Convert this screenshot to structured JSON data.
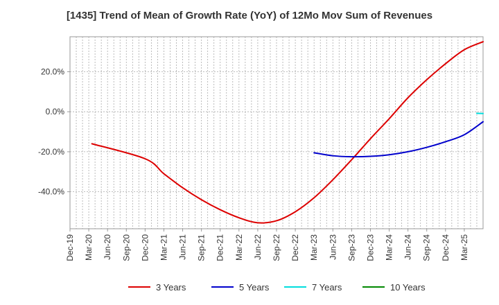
{
  "chart_data": {
    "type": "line",
    "title": "[1435]  Trend of Mean of Growth Rate (YoY) of 12Mo Mov Sum of Revenues",
    "xlabel": "",
    "ylabel": "",
    "x_tick_labels": [
      "Dec-19",
      "Mar-20",
      "Jun-20",
      "Sep-20",
      "Dec-20",
      "Mar-21",
      "Jun-21",
      "Sep-21",
      "Dec-21",
      "Mar-22",
      "Jun-22",
      "Sep-22",
      "Dec-22",
      "Mar-23",
      "Jun-23",
      "Sep-23",
      "Dec-23",
      "Mar-24",
      "Jun-24",
      "Sep-24",
      "Dec-24",
      "Mar-25"
    ],
    "y_ticks": [
      20.0,
      0.0,
      -20.0,
      -40.0
    ],
    "y_tick_labels": [
      "20.0%",
      "0.0%",
      "-20.0%",
      "-40.0%"
    ],
    "ylim": [
      -58.5,
      37.5
    ],
    "x_unit": "months since Dec-19",
    "xlim": [
      0,
      63
    ],
    "grid": true,
    "legend_position": "bottom",
    "series": [
      {
        "name": "3 Years",
        "color": "#dd0000",
        "points": [
          [
            3.5,
            -16.0
          ],
          [
            12,
            -23.5
          ],
          [
            15,
            -31.0
          ],
          [
            18,
            -38.0
          ],
          [
            21,
            -44.0
          ],
          [
            24,
            -49.0
          ],
          [
            27,
            -53.0
          ],
          [
            30,
            -55.5
          ],
          [
            33,
            -54.5
          ],
          [
            36,
            -50.0
          ],
          [
            39,
            -43.0
          ],
          [
            42,
            -34.0
          ],
          [
            45,
            -24.0
          ],
          [
            48,
            -13.5
          ],
          [
            51,
            -3.5
          ],
          [
            54,
            7.0
          ],
          [
            57,
            16.0
          ],
          [
            60,
            24.0
          ],
          [
            63,
            31.0
          ],
          [
            66,
            35.0
          ]
        ]
      },
      {
        "name": "5 Years",
        "color": "#0000cc",
        "points": [
          [
            39,
            -20.5
          ],
          [
            42,
            -22.0
          ],
          [
            45,
            -22.5
          ],
          [
            48,
            -22.3
          ],
          [
            51,
            -21.5
          ],
          [
            54,
            -20.0
          ],
          [
            57,
            -17.8
          ],
          [
            60,
            -15.0
          ],
          [
            63,
            -11.5
          ],
          [
            66,
            -5.0
          ]
        ]
      },
      {
        "name": "7 Years",
        "color": "#00dddd",
        "points": [
          [
            65,
            -0.8
          ],
          [
            66,
            -0.9
          ]
        ]
      },
      {
        "name": "10 Years",
        "color": "#008800",
        "points": []
      }
    ]
  }
}
